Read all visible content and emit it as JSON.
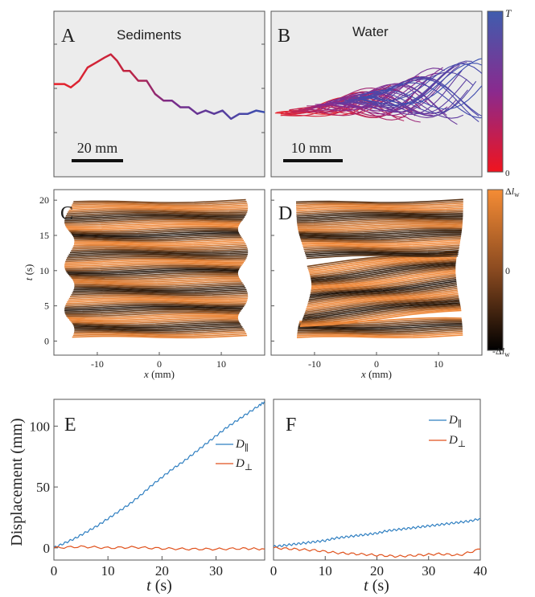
{
  "colors": {
    "panel_bg": "#ececec",
    "axis": "#555555",
    "red": "#e8232b",
    "purple": "#8a2a8e",
    "blue": "#3b4fb0",
    "orange": "#f08a3c",
    "dark": "#1a1008",
    "d_par": "#2f7fc1",
    "d_perp": "#e0521d"
  },
  "chart_data": [
    {
      "id": "A",
      "type": "line",
      "panel_label": "A",
      "title": "Sediments",
      "scale_bar_label": "20 mm",
      "color_encoding": "time (red to blue)",
      "series": [
        {
          "x": [
            0,
            5,
            8,
            12,
            16,
            20,
            24,
            27,
            30,
            33,
            36,
            40,
            44,
            48,
            52,
            56,
            60,
            64,
            68,
            72,
            76,
            80,
            84,
            88,
            92,
            96,
            100
          ],
          "y": [
            0.44,
            0.44,
            0.46,
            0.42,
            0.34,
            0.31,
            0.28,
            0.26,
            0.3,
            0.36,
            0.36,
            0.42,
            0.42,
            0.5,
            0.54,
            0.54,
            0.58,
            0.58,
            0.62,
            0.6,
            0.62,
            0.6,
            0.65,
            0.62,
            0.62,
            0.6,
            0.61
          ]
        }
      ]
    },
    {
      "id": "B",
      "type": "line",
      "panel_label": "B",
      "title": "Water",
      "scale_bar_label": "10 mm",
      "color_encoding": "time (red to blue)",
      "colorbar": {
        "top_label": "T",
        "bottom_label": "0"
      }
    },
    {
      "id": "C",
      "type": "line",
      "panel_label": "C",
      "xlabel_var": "x",
      "xlabel_unit": " (mm)",
      "ylabel_var": "t",
      "ylabel_unit": " (s)",
      "xlim": [
        -17,
        17
      ],
      "ylim": [
        -2,
        21.5
      ],
      "xticks": [
        -10,
        0,
        10
      ],
      "yticks": [
        0,
        5,
        10,
        15,
        20
      ],
      "xtick_labels": [
        "-10",
        "0",
        "10"
      ],
      "ytick_labels": [
        "0",
        "5",
        "10",
        "15",
        "20"
      ],
      "t_range": [
        0.6,
        19.8
      ],
      "x_extent": [
        -14.5,
        13.5
      ]
    },
    {
      "id": "D",
      "type": "line",
      "panel_label": "D",
      "xlabel_var": "x",
      "xlabel_unit": " (mm)",
      "xlim": [
        -17,
        17
      ],
      "ylim": [
        -2,
        21.5
      ],
      "xticks": [
        -10,
        0,
        10
      ],
      "yticks": [
        0,
        5,
        10,
        15,
        20
      ],
      "xtick_labels": [
        "-10",
        "0",
        "10"
      ],
      "t_range": [
        0.6,
        19.8
      ],
      "x_extent": [
        -13,
        14
      ],
      "colorbar": {
        "top_label": "Δl_w",
        "mid_label": "0",
        "bottom_label": "-Δl_w"
      }
    },
    {
      "id": "E",
      "type": "line",
      "panel_label": "E",
      "xlabel_var": "t",
      "xlabel_unit": " (s)",
      "ylabel": "Displacement (mm)",
      "xlim": [
        0,
        39
      ],
      "ylim": [
        -10,
        122
      ],
      "xticks": [
        0,
        10,
        20,
        30
      ],
      "yticks": [
        0,
        50,
        100
      ],
      "xtick_labels": [
        "0",
        "10",
        "20",
        "30"
      ],
      "ytick_labels": [
        "0",
        "50",
        "100"
      ],
      "legend": {
        "placement": "top-right"
      },
      "series": [
        {
          "name": "D∥",
          "label_var": "D",
          "label_sub": "∥",
          "x": [
            0,
            2,
            4,
            6,
            8,
            10,
            12,
            14,
            16,
            18,
            20,
            22,
            24,
            26,
            28,
            30,
            32,
            34,
            36,
            38,
            39
          ],
          "y": [
            0,
            4,
            8,
            13,
            18,
            24,
            30,
            36,
            43,
            51,
            58,
            65,
            71,
            78,
            85,
            92,
            99,
            105,
            111,
            117,
            120
          ]
        },
        {
          "name": "D⊥",
          "label_var": "D",
          "label_sub": "⊥",
          "x": [
            0,
            5,
            10,
            15,
            20,
            25,
            30,
            35,
            39
          ],
          "y": [
            0,
            1,
            0,
            0.5,
            -0.5,
            -1,
            -1,
            -0.5,
            -1
          ]
        }
      ]
    },
    {
      "id": "F",
      "type": "line",
      "panel_label": "F",
      "xlabel_var": "t",
      "xlabel_unit": " (s)",
      "xlim": [
        0,
        40
      ],
      "ylim": [
        -10,
        122
      ],
      "xticks": [
        0,
        10,
        20,
        30,
        40
      ],
      "xtick_labels": [
        "0",
        "10",
        "20",
        "30",
        "40"
      ],
      "legend": {
        "placement": "top-right"
      },
      "series": [
        {
          "name": "D∥",
          "label_var": "D",
          "label_sub": "∥",
          "x": [
            0,
            2,
            4,
            6,
            8,
            10,
            12,
            14,
            16,
            18,
            20,
            22,
            24,
            26,
            28,
            30,
            32,
            34,
            36,
            38,
            40
          ],
          "y": [
            1,
            2,
            3,
            4,
            5,
            6,
            8,
            9,
            10,
            11,
            12,
            14,
            15,
            16,
            17,
            18,
            19,
            20,
            21,
            22,
            24
          ]
        },
        {
          "name": "D⊥",
          "label_var": "D",
          "label_sub": "⊥",
          "x": [
            0,
            4,
            8,
            12,
            16,
            20,
            24,
            28,
            32,
            36,
            40
          ],
          "y": [
            0,
            -1,
            -2,
            -4,
            -5,
            -6,
            -7,
            -6,
            -5,
            -6,
            -1
          ]
        }
      ]
    }
  ]
}
